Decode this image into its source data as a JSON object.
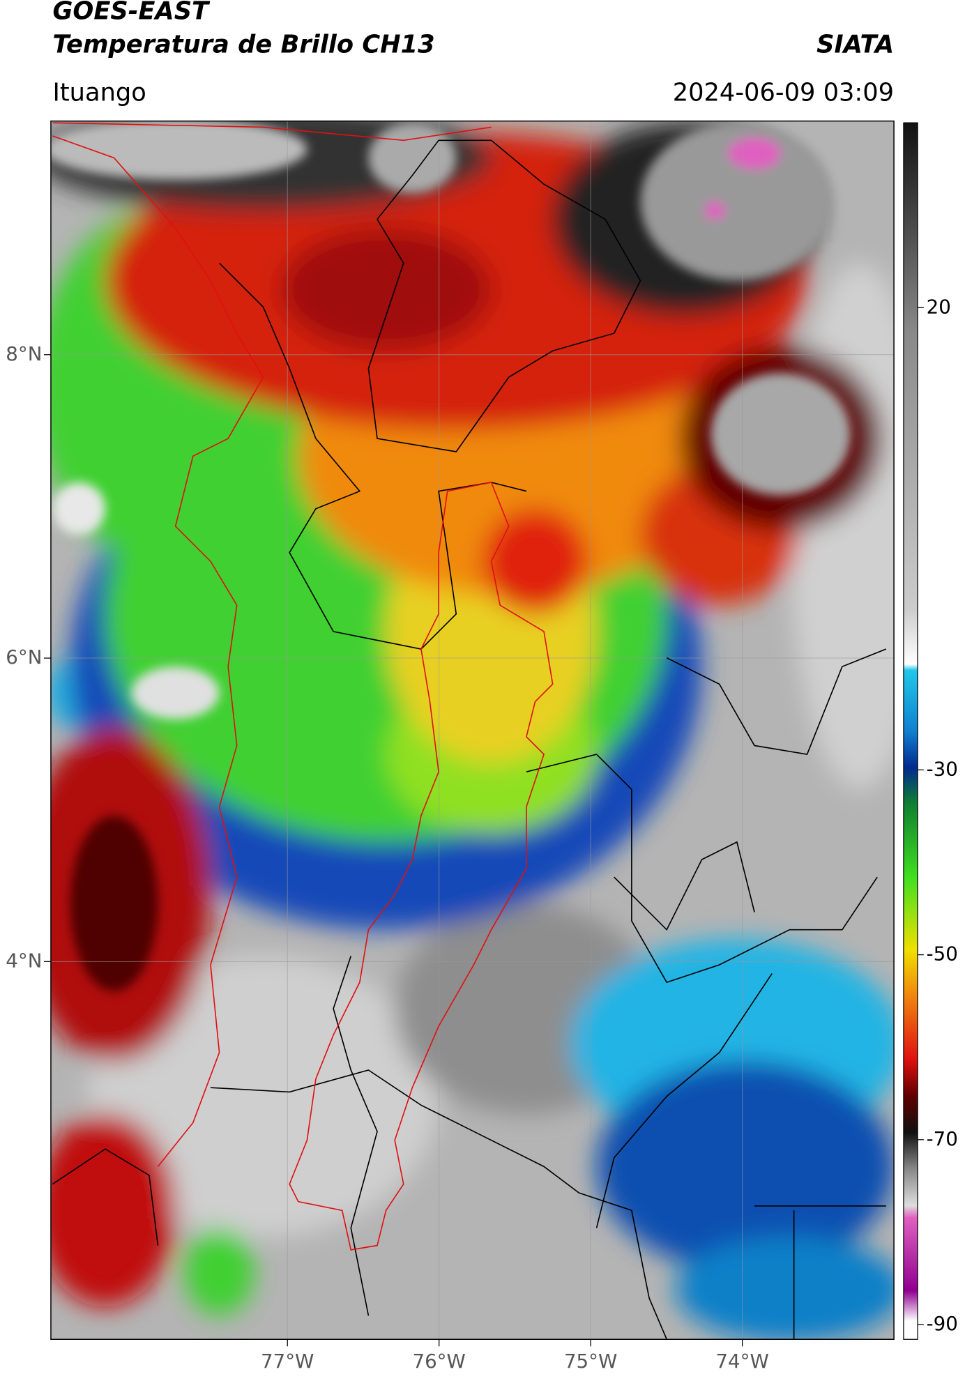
{
  "header": {
    "title": "GOES-EAST",
    "subtitle": "Temperatura de Brillo CH13",
    "source": "SIATA",
    "location": "Ituango",
    "datetime": "2024-06-09 03:09"
  },
  "map": {
    "xlim": [
      -78.56,
      -73.0
    ],
    "ylim": [
      1.51,
      9.54
    ],
    "xticks": [
      {
        "value": -77,
        "label": "77°W"
      },
      {
        "value": -76,
        "label": "76°W"
      },
      {
        "value": -75,
        "label": "75°W"
      },
      {
        "value": -74,
        "label": "74°W"
      }
    ],
    "yticks": [
      {
        "value": 8,
        "label": "8°N"
      },
      {
        "value": 6,
        "label": "6°N"
      },
      {
        "value": 4,
        "label": "4°N"
      }
    ]
  },
  "colorbar": {
    "ylim": [
      -91.6,
      40
    ],
    "yticks": [
      20,
      -30,
      -50,
      -70,
      -90
    ]
  }
}
